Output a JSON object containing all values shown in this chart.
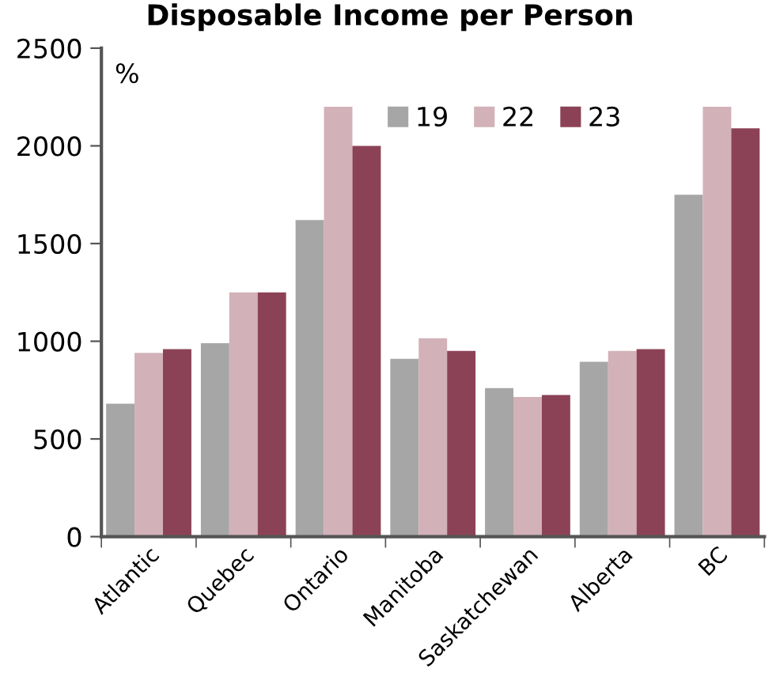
{
  "chart_data": {
    "type": "bar",
    "title": "Disposable Income per Person",
    "ylabel": "%",
    "categories": [
      "Atlantic",
      "Quebec",
      "Ontario",
      "Manitoba",
      "Saskatchewan",
      "Alberta",
      "BC"
    ],
    "series": [
      {
        "name": "19",
        "color": "#a6a6a6",
        "values": [
          680,
          990,
          1620,
          910,
          760,
          895,
          1750
        ]
      },
      {
        "name": "22",
        "color": "#d2b1b9",
        "values": [
          940,
          1250,
          2200,
          1015,
          715,
          950,
          2200
        ]
      },
      {
        "name": "23",
        "color": "#8c4256",
        "values": [
          960,
          1250,
          2000,
          950,
          725,
          960,
          2090
        ]
      }
    ],
    "ylim": [
      0,
      2500
    ],
    "yticks": [
      0,
      500,
      1000,
      1500,
      2000,
      2500
    ],
    "grid": false,
    "legend": "top right"
  }
}
